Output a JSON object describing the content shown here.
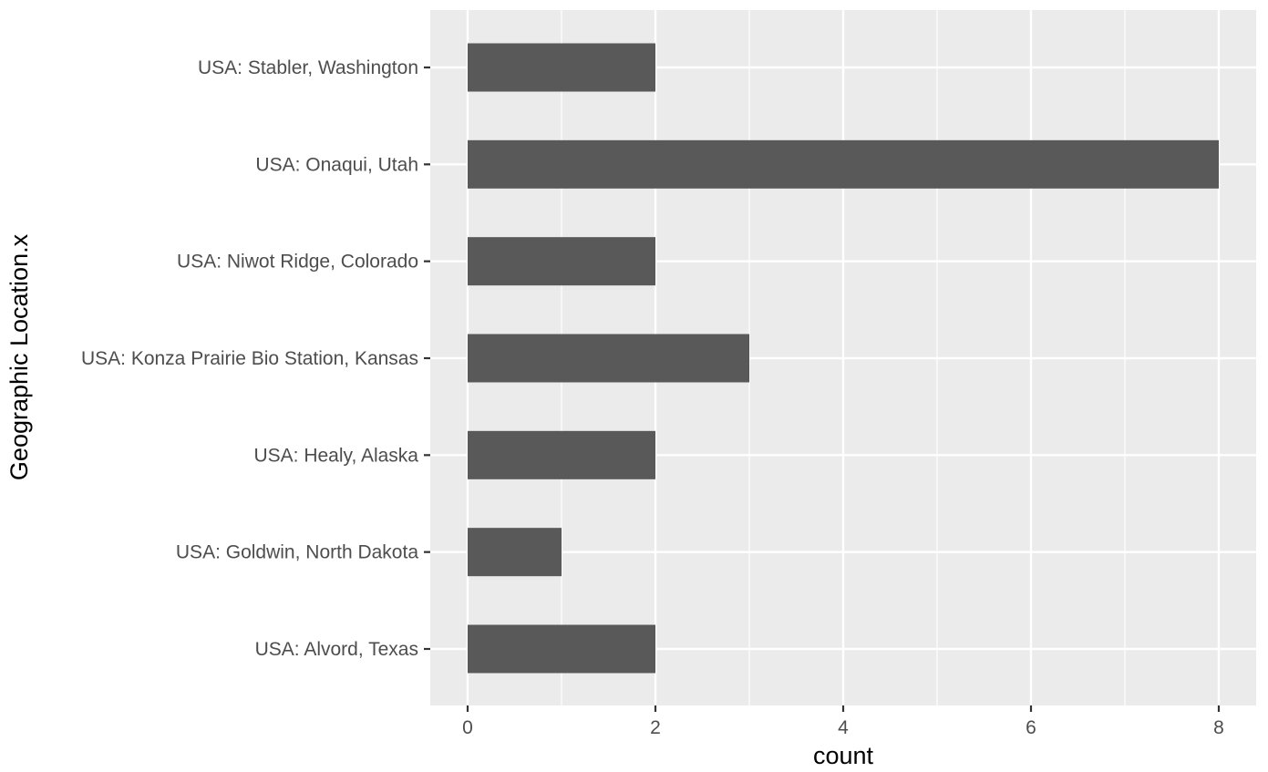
{
  "chart_data": {
    "type": "bar",
    "orientation": "horizontal",
    "categories": [
      "USA: Alvord, Texas",
      "USA: Goldwin, North Dakota",
      "USA: Healy, Alaska",
      "USA: Konza Prairie Bio Station, Kansas",
      "USA: Niwot Ridge, Colorado",
      "USA: Onaqui, Utah",
      "USA: Stabler, Washington"
    ],
    "values": [
      2,
      1,
      2,
      3,
      2,
      8,
      2
    ],
    "xlabel": "count",
    "ylabel": "Geographic Location.x",
    "xlim": [
      0,
      8
    ],
    "xticks": [
      0,
      2,
      4,
      6,
      8
    ],
    "grid": true,
    "colors": {
      "bar": "#595959",
      "panel": "#ebebeb",
      "grid": "#ffffff"
    }
  }
}
